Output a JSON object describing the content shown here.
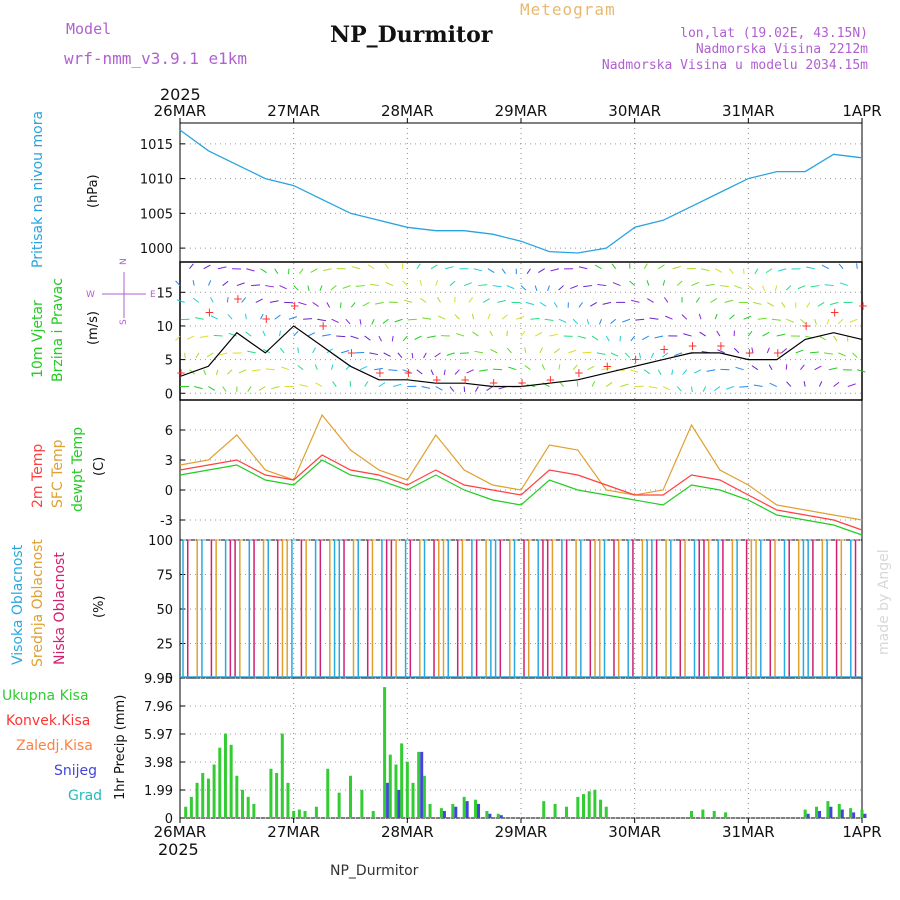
{
  "header": {
    "model_label": "Model",
    "model_name": "wrf-nmm_v3.9.1 e1km",
    "title": "NP_Durmitor",
    "meteogram_label": "Meteogram",
    "lonlat": "lon,lat (19.02E, 43.15N)",
    "elevation": "Nadmorska Visina 2212m",
    "model_elevation": "Nadmorska Visina u modelu 2034.15m"
  },
  "footer": {
    "station": "NP_Durmitor"
  },
  "watermark": "made by Angel",
  "x_axis": {
    "year": "2025",
    "labels": [
      "26MAR",
      "27MAR",
      "28MAR",
      "29MAR",
      "30MAR",
      "31MAR",
      "1APR"
    ]
  },
  "colors": {
    "pressure": "#29a3e0",
    "wind_speed": "#000000",
    "gust": "#ff3030",
    "t2m": "#ff4040",
    "sfc": "#e0a030",
    "dewpt": "#22cc22",
    "high_cloud": "#2aa8e0",
    "mid_cloud": "#e0a030",
    "low_cloud": "#d02070",
    "total_precip": "#33cc33",
    "conv_precip": "#ff3333",
    "frz_precip": "#ff8040",
    "snow": "#4444dd",
    "hail": "#22bbbb"
  },
  "panels": {
    "pressure": {
      "ylabel": "Pritisak na nivou mora",
      "unit": "(hPa)",
      "ticks": [
        "1015",
        "1010",
        "1005",
        "1000"
      ]
    },
    "wind": {
      "ylabel_1": "10m Vjetar",
      "ylabel_2": "Brzina i Pravac",
      "unit": "(m/s)",
      "ticks": [
        "15",
        "10",
        "5",
        "0"
      ],
      "compass_n": "N",
      "compass_w": "W",
      "compass_e": "E",
      "compass_s": "S"
    },
    "temp": {
      "label_t2m": "2m Temp",
      "label_sfc": "SFC Temp",
      "label_dew": "dewpt Temp",
      "unit": "(C)",
      "ticks": [
        "6",
        "3",
        "0",
        "-3"
      ]
    },
    "cloud": {
      "label_high": "Visoka Oblacnost",
      "label_mid": "Srednja Oblacnost",
      "label_low": "Niska Oblacnost",
      "unit": "(%)",
      "ticks": [
        "100",
        "75",
        "50",
        "25",
        "0"
      ]
    },
    "precip": {
      "label_total": "Ukupna Kisa",
      "label_conv": "Konvek.Kisa",
      "label_frz": "Zaledj.Kisa",
      "label_snow": "Snijeg",
      "label_hail": "Grad",
      "unit": "1hr Precip (mm)",
      "ticks": [
        "9.95",
        "7.96",
        "5.97",
        "3.98",
        "1.99",
        "0"
      ]
    }
  },
  "chart_data": [
    {
      "type": "line",
      "title": "",
      "ylabel": "Pritisak na nivou mora (hPa)",
      "ylim": [
        998,
        1018
      ],
      "x_day_fraction": [
        0,
        0.25,
        0.5,
        0.75,
        1.0,
        1.25,
        1.5,
        1.75,
        2.0,
        2.25,
        2.5,
        2.75,
        3.0,
        3.25,
        3.5,
        3.75,
        4.0,
        4.25,
        4.5,
        4.75,
        5.0,
        5.25,
        5.5,
        5.75,
        6.0
      ],
      "series": [
        {
          "name": "Pritisak na nivou mora",
          "values": [
            1017,
            1014,
            1012,
            1010,
            1009,
            1007,
            1005,
            1004,
            1003,
            1002.5,
            1002.5,
            1002,
            1001,
            999.5,
            999.3,
            1000,
            1003,
            1004,
            1006,
            1008,
            1010,
            1011,
            1011,
            1013.5,
            1013
          ]
        }
      ]
    },
    {
      "type": "line",
      "title": "",
      "ylabel": "10m Vjetar Brzina i Pravac (m/s)",
      "ylim": [
        -1,
        19.5
      ],
      "x_day_fraction": [
        0,
        0.25,
        0.5,
        0.75,
        1.0,
        1.25,
        1.5,
        1.75,
        2.0,
        2.25,
        2.5,
        2.75,
        3.0,
        3.25,
        3.5,
        3.75,
        4.0,
        4.25,
        4.5,
        4.75,
        5.0,
        5.25,
        5.5,
        5.75,
        6.0
      ],
      "series": [
        {
          "name": "speed",
          "values": [
            2.5,
            4,
            9,
            6,
            10,
            7,
            4,
            2,
            2,
            1.5,
            1.5,
            1,
            1,
            1.5,
            2,
            3,
            4,
            5,
            6,
            6,
            5,
            5,
            8,
            9,
            8
          ]
        },
        {
          "name": "gust",
          "values": [
            3,
            12,
            14,
            11,
            13,
            10,
            6,
            3,
            3,
            2,
            2,
            1.5,
            1.5,
            2,
            3,
            4,
            5,
            6.5,
            7,
            7,
            6,
            6,
            10,
            12,
            13
          ]
        }
      ]
    },
    {
      "type": "line",
      "title": "",
      "ylabel": "(C)",
      "ylim": [
        -5,
        9
      ],
      "x_day_fraction": [
        0,
        0.25,
        0.5,
        0.75,
        1.0,
        1.25,
        1.5,
        1.75,
        2.0,
        2.25,
        2.5,
        2.75,
        3.0,
        3.25,
        3.5,
        3.75,
        4.0,
        4.25,
        4.5,
        4.75,
        5.0,
        5.25,
        5.5,
        5.75,
        6.0
      ],
      "series": [
        {
          "name": "2m Temp",
          "values": [
            2,
            2.5,
            3,
            1.5,
            1,
            3.5,
            2,
            1.5,
            0.5,
            2,
            0.5,
            0,
            -0.5,
            2,
            1.5,
            0.5,
            -0.5,
            -0.5,
            1.5,
            1,
            -0.5,
            -2,
            -2.5,
            -3,
            -4
          ]
        },
        {
          "name": "SFC Temp",
          "values": [
            2.5,
            3,
            5.5,
            2,
            1,
            7.5,
            4,
            2,
            1,
            5.5,
            2,
            0.5,
            0,
            4.5,
            4,
            0,
            -0.5,
            0,
            6.5,
            2,
            0.5,
            -1.5,
            -2,
            -2.5,
            -3
          ]
        },
        {
          "name": "dewpt Temp",
          "values": [
            1.5,
            2,
            2.5,
            1,
            0.5,
            3,
            1.5,
            1,
            0,
            1.5,
            0,
            -1,
            -1.5,
            1,
            0,
            -0.5,
            -1,
            -1.5,
            0.5,
            0,
            -1,
            -2.5,
            -3,
            -3.5,
            -4.5
          ]
        }
      ]
    },
    {
      "type": "bar",
      "title": "",
      "ylabel": "(%)",
      "ylim": [
        0,
        100
      ],
      "categories": [
        "26MAR",
        "27MAR",
        "28MAR",
        "29MAR",
        "30MAR",
        "31MAR"
      ],
      "series": [
        {
          "name": "Visoka Oblacnost",
          "values": [
            100,
            100,
            100,
            100,
            100,
            100
          ]
        },
        {
          "name": "Srednja Oblacnost",
          "values": [
            100,
            100,
            100,
            100,
            100,
            100
          ]
        },
        {
          "name": "Niska Oblacnost",
          "values": [
            100,
            100,
            100,
            100,
            100,
            100
          ]
        }
      ]
    },
    {
      "type": "bar",
      "title": "",
      "ylabel": "1hr Precip (mm)",
      "ylim": [
        0,
        9.95
      ],
      "x_day_fraction": [
        0.05,
        0.1,
        0.15,
        0.2,
        0.25,
        0.3,
        0.35,
        0.4,
        0.45,
        0.5,
        0.55,
        0.6,
        0.65,
        0.8,
        0.85,
        0.9,
        0.95,
        1.0,
        1.05,
        1.1,
        1.2,
        1.3,
        1.4,
        1.5,
        1.6,
        1.7,
        1.8,
        1.85,
        1.9,
        1.95,
        2.0,
        2.05,
        2.1,
        2.15,
        2.2,
        2.3,
        2.4,
        2.5,
        2.6,
        2.7,
        2.8,
        3.2,
        3.3,
        3.4,
        3.5,
        3.55,
        3.6,
        3.65,
        3.7,
        3.75,
        4.5,
        4.6,
        4.7,
        4.8,
        5.5,
        5.6,
        5.7,
        5.8,
        5.9,
        6.0
      ],
      "series": [
        {
          "name": "Ukupna Kisa",
          "values": [
            0.8,
            1.5,
            2.5,
            3.2,
            2.8,
            3.8,
            5.0,
            6.0,
            5.2,
            3.0,
            2.0,
            1.5,
            1.0,
            3.5,
            3.2,
            6.0,
            2.5,
            0.5,
            0.6,
            0.5,
            0.8,
            3.5,
            1.8,
            3.0,
            2.0,
            0.5,
            9.3,
            4.5,
            3.8,
            5.3,
            4.0,
            2.5,
            4.7,
            3.0,
            1.0,
            0.7,
            1.0,
            1.5,
            1.3,
            0.5,
            0.3,
            1.2,
            1.0,
            0.8,
            1.5,
            1.7,
            1.9,
            2.0,
            1.3,
            0.8,
            0.5,
            0.6,
            0.5,
            0.4,
            0.6,
            0.8,
            1.2,
            1.0,
            0.7,
            0.6
          ]
        },
        {
          "name": "Snijeg",
          "values": [
            0,
            0,
            0,
            0,
            0,
            0,
            0,
            0,
            0,
            0,
            0,
            0,
            0,
            0,
            0,
            0,
            0,
            0,
            0,
            0,
            0,
            0,
            0,
            0,
            0,
            0,
            2.5,
            0,
            2.0,
            0,
            0,
            0,
            4.7,
            0,
            0,
            0.5,
            0.8,
            1.2,
            1.0,
            0.3,
            0.2,
            0,
            0,
            0,
            0,
            0,
            0,
            0,
            0,
            0,
            0,
            0,
            0,
            0,
            0.3,
            0.5,
            0.8,
            0.6,
            0.4,
            0.3
          ]
        }
      ]
    }
  ]
}
